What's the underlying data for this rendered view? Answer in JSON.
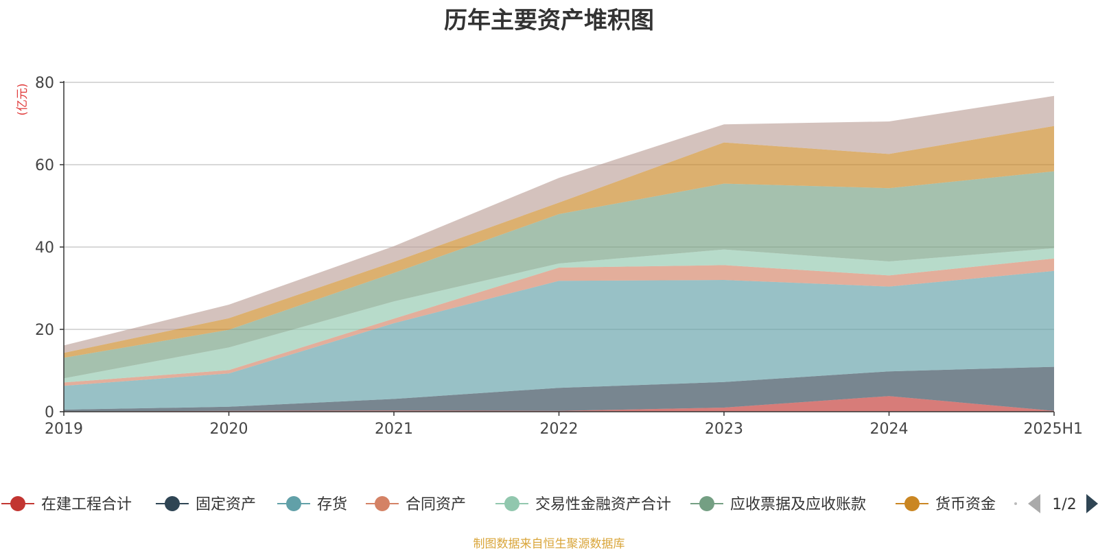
{
  "chart_data": {
    "type": "area",
    "stacked": true,
    "title": "历年主要资产堆积图",
    "unit_label": "(亿元)",
    "categories": [
      "2019",
      "2020",
      "2021",
      "2022",
      "2023",
      "2024",
      "2025H1"
    ],
    "ylim": [
      0,
      80
    ],
    "yticks": [
      0,
      20,
      40,
      60,
      80
    ],
    "grid": true,
    "legend_position": "bottom",
    "legend_page": "1/2",
    "series": [
      {
        "name": "在建工程合计",
        "color": "#c23531",
        "values": [
          0.1,
          0.2,
          0.3,
          0.2,
          1.0,
          3.8,
          0.2
        ]
      },
      {
        "name": "固定资产",
        "color": "#2f4554",
        "values": [
          0.4,
          1.0,
          2.8,
          5.6,
          6.2,
          6.0,
          10.7
        ]
      },
      {
        "name": "存货",
        "color": "#61a0a8",
        "values": [
          5.8,
          8.1,
          18.4,
          26.0,
          24.8,
          20.6,
          23.3
        ]
      },
      {
        "name": "合同资产",
        "color": "#d48265",
        "values": [
          0.8,
          0.8,
          1.1,
          3.2,
          3.6,
          2.7,
          3.0
        ]
      },
      {
        "name": "交易性金融资产合计",
        "color": "#91c7ae",
        "values": [
          1.0,
          5.5,
          4.2,
          1.0,
          3.8,
          3.4,
          2.5
        ]
      },
      {
        "name": "应收票据及应收账款",
        "color": "#749f83",
        "values": [
          5.0,
          4.3,
          6.9,
          12.0,
          16.0,
          17.8,
          18.7
        ]
      },
      {
        "name": "货币资金",
        "color": "#ca8622",
        "values": [
          1.2,
          2.8,
          2.7,
          2.8,
          10.0,
          8.3,
          11.0
        ]
      },
      {
        "name": "",
        "color": "#bda29a",
        "values": [
          1.8,
          3.3,
          3.8,
          6.0,
          4.4,
          7.9,
          7.3
        ]
      }
    ]
  },
  "footer_note": "制图数据来自恒生聚源数据库"
}
